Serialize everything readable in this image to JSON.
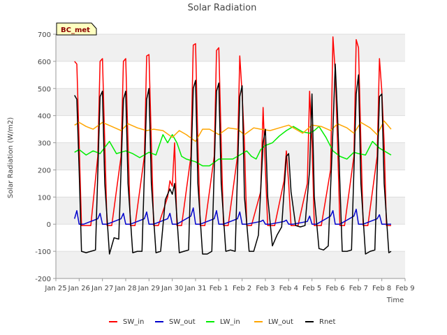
{
  "chart_data": {
    "type": "line",
    "title": "Solar Radiation",
    "xlabel": "Time",
    "ylabel": "Solar Radiation (W/m2)",
    "badge": "BC_met",
    "ylim": [
      -200,
      700
    ],
    "yticks": [
      -200,
      -100,
      0,
      100,
      200,
      300,
      400,
      500,
      600,
      700
    ],
    "xlim": [
      0,
      15
    ],
    "xticks": [
      {
        "x": 0,
        "label": "Jan 25"
      },
      {
        "x": 1,
        "label": "Jan 26"
      },
      {
        "x": 2,
        "label": "Jan 27"
      },
      {
        "x": 3,
        "label": "Jan 28"
      },
      {
        "x": 4,
        "label": "Jan 29"
      },
      {
        "x": 5,
        "label": "Jan 30"
      },
      {
        "x": 6,
        "label": "Jan 31"
      },
      {
        "x": 7,
        "label": "Feb 1"
      },
      {
        "x": 8,
        "label": "Feb 2"
      },
      {
        "x": 9,
        "label": "Feb 3"
      },
      {
        "x": 10,
        "label": "Feb 4"
      },
      {
        "x": 11,
        "label": "Feb 5"
      },
      {
        "x": 12,
        "label": "Feb 6"
      },
      {
        "x": 13,
        "label": "Feb 7"
      },
      {
        "x": 14,
        "label": "Feb 8"
      },
      {
        "x": 15,
        "label": "Feb 9"
      }
    ],
    "grid": "horizontal bands",
    "legend_position": "bottom",
    "series": [
      {
        "name": "SW_in",
        "color": "#ff0000",
        "x": [
          0.8,
          0.9,
          1.0,
          1.1,
          1.2,
          1.3,
          1.5,
          1.8,
          1.9,
          2.0,
          2.1,
          2.2,
          2.4,
          2.8,
          2.9,
          3.0,
          3.1,
          3.2,
          3.4,
          3.8,
          3.9,
          4.0,
          4.1,
          4.2,
          4.4,
          4.8,
          4.9,
          5.0,
          5.1,
          5.2,
          5.4,
          5.8,
          5.9,
          6.0,
          6.1,
          6.2,
          6.4,
          6.8,
          6.9,
          7.0,
          7.1,
          7.2,
          7.4,
          7.8,
          7.9,
          8.0,
          8.1,
          8.2,
          8.4,
          8.8,
          8.9,
          9.0,
          9.1,
          9.2,
          9.4,
          9.8,
          9.9,
          10.0,
          10.1,
          10.2,
          10.4,
          10.8,
          10.9,
          11.0,
          11.1,
          11.2,
          11.4,
          11.8,
          11.9,
          12.0,
          12.1,
          12.2,
          12.4,
          12.8,
          12.9,
          13.0,
          13.1,
          13.2,
          13.4,
          13.8,
          13.9,
          14.0,
          14.1,
          14.2,
          14.4
        ],
        "y": [
          600,
          590,
          300,
          -5,
          -5,
          -5,
          -5,
          250,
          600,
          610,
          300,
          -5,
          -5,
          250,
          600,
          610,
          300,
          -5,
          -5,
          250,
          620,
          625,
          300,
          -5,
          -5,
          100,
          160,
          140,
          300,
          -5,
          -5,
          250,
          660,
          665,
          300,
          -5,
          -5,
          250,
          640,
          650,
          300,
          -5,
          -5,
          250,
          620,
          480,
          300,
          -5,
          -5,
          120,
          430,
          200,
          -5,
          -5,
          -5,
          160,
          270,
          150,
          -5,
          -5,
          -5,
          150,
          490,
          300,
          -5,
          -5,
          -5,
          200,
          690,
          560,
          300,
          -5,
          -5,
          250,
          680,
          650,
          300,
          -5,
          -5,
          250,
          610,
          490,
          300,
          -5,
          -5
        ]
      },
      {
        "name": "SW_out",
        "color": "#0000cc",
        "x": [
          0.8,
          0.9,
          1.0,
          1.2,
          1.8,
          1.9,
          2.0,
          2.2,
          2.8,
          2.9,
          3.0,
          3.2,
          3.8,
          3.9,
          4.0,
          4.2,
          4.8,
          4.9,
          5.0,
          5.2,
          5.8,
          5.9,
          6.0,
          6.2,
          6.8,
          6.9,
          7.0,
          7.2,
          7.8,
          7.9,
          8.0,
          8.2,
          8.8,
          8.9,
          9.0,
          9.2,
          9.8,
          9.9,
          10.0,
          10.2,
          10.8,
          10.9,
          11.0,
          11.2,
          11.8,
          11.9,
          12.0,
          12.2,
          12.8,
          12.9,
          13.0,
          13.2,
          13.8,
          13.9,
          14.0,
          14.2,
          14.4
        ],
        "y": [
          20,
          50,
          0,
          0,
          20,
          40,
          0,
          0,
          20,
          40,
          0,
          0,
          20,
          45,
          0,
          0,
          20,
          40,
          0,
          0,
          30,
          60,
          0,
          0,
          20,
          50,
          0,
          0,
          20,
          45,
          0,
          0,
          10,
          15,
          0,
          0,
          10,
          15,
          0,
          0,
          10,
          30,
          0,
          0,
          30,
          50,
          0,
          0,
          30,
          55,
          0,
          0,
          20,
          35,
          0,
          0,
          0
        ]
      },
      {
        "name": "LW_in",
        "color": "#00ee00",
        "x": [
          0.8,
          1.0,
          1.3,
          1.6,
          1.9,
          2.3,
          2.6,
          3.0,
          3.3,
          3.6,
          4.0,
          4.3,
          4.6,
          4.8,
          5.0,
          5.2,
          5.4,
          5.6,
          6.0,
          6.3,
          6.6,
          7.0,
          7.3,
          7.6,
          7.9,
          8.2,
          8.4,
          8.6,
          8.8,
          9.0,
          9.3,
          9.6,
          9.9,
          10.2,
          10.4,
          10.6,
          10.9,
          11.1,
          11.3,
          11.6,
          11.9,
          12.2,
          12.5,
          12.8,
          13.0,
          13.3,
          13.6,
          13.9,
          14.1,
          14.4
        ],
        "y": [
          265,
          275,
          255,
          270,
          260,
          305,
          260,
          270,
          260,
          245,
          265,
          255,
          330,
          300,
          330,
          300,
          250,
          240,
          230,
          215,
          215,
          240,
          240,
          240,
          255,
          270,
          250,
          240,
          275,
          290,
          300,
          325,
          345,
          360,
          350,
          340,
          335,
          345,
          360,
          320,
          270,
          250,
          240,
          265,
          260,
          255,
          305,
          280,
          270,
          255
        ]
      },
      {
        "name": "LW_out",
        "color": "#ffa500",
        "x": [
          0.8,
          1.0,
          1.3,
          1.6,
          2.0,
          2.4,
          2.8,
          3.1,
          3.5,
          3.9,
          4.2,
          4.6,
          5.0,
          5.3,
          5.6,
          6.0,
          6.3,
          6.6,
          7.0,
          7.4,
          7.8,
          8.1,
          8.5,
          8.8,
          9.2,
          9.6,
          10.0,
          10.3,
          10.6,
          11.0,
          11.4,
          11.8,
          12.1,
          12.5,
          12.8,
          13.1,
          13.5,
          13.8,
          14.1,
          14.4
        ],
        "y": [
          365,
          375,
          360,
          350,
          375,
          360,
          345,
          370,
          355,
          345,
          350,
          345,
          320,
          345,
          330,
          305,
          350,
          350,
          330,
          355,
          350,
          330,
          355,
          350,
          345,
          355,
          365,
          350,
          335,
          365,
          360,
          345,
          370,
          355,
          335,
          375,
          355,
          330,
          380,
          350
        ]
      },
      {
        "name": "Rnet",
        "color": "#000000",
        "x": [
          0.8,
          0.9,
          1.0,
          1.1,
          1.3,
          1.5,
          1.7,
          1.9,
          2.0,
          2.1,
          2.3,
          2.5,
          2.7,
          2.9,
          3.0,
          3.1,
          3.3,
          3.5,
          3.7,
          3.9,
          4.0,
          4.1,
          4.3,
          4.5,
          4.7,
          4.9,
          5.0,
          5.1,
          5.3,
          5.5,
          5.7,
          5.9,
          6.0,
          6.1,
          6.3,
          6.5,
          6.7,
          6.9,
          7.0,
          7.1,
          7.3,
          7.5,
          7.7,
          7.9,
          8.0,
          8.1,
          8.3,
          8.5,
          8.7,
          8.9,
          9.0,
          9.1,
          9.3,
          9.5,
          9.7,
          9.9,
          10.0,
          10.1,
          10.3,
          10.5,
          10.7,
          10.9,
          11.0,
          11.1,
          11.3,
          11.5,
          11.7,
          11.9,
          12.0,
          12.1,
          12.3,
          12.5,
          12.7,
          12.9,
          13.0,
          13.1,
          13.3,
          13.5,
          13.7,
          13.9,
          14.0,
          14.1,
          14.3,
          14.4
        ],
        "y": [
          475,
          460,
          200,
          -100,
          -105,
          -100,
          -95,
          470,
          490,
          150,
          -110,
          -50,
          -55,
          460,
          490,
          150,
          -105,
          -100,
          -100,
          460,
          500,
          150,
          -105,
          -100,
          90,
          130,
          110,
          150,
          -105,
          -100,
          -95,
          500,
          530,
          150,
          -110,
          -110,
          -100,
          490,
          520,
          150,
          -100,
          -95,
          -100,
          470,
          510,
          100,
          -100,
          -100,
          -40,
          300,
          350,
          100,
          -80,
          -40,
          -10,
          250,
          260,
          120,
          -5,
          -10,
          -5,
          200,
          480,
          100,
          -90,
          -95,
          -80,
          350,
          590,
          400,
          -100,
          -100,
          -95,
          480,
          550,
          150,
          -110,
          -100,
          -95,
          470,
          480,
          150,
          -105,
          -100
        ]
      }
    ]
  }
}
